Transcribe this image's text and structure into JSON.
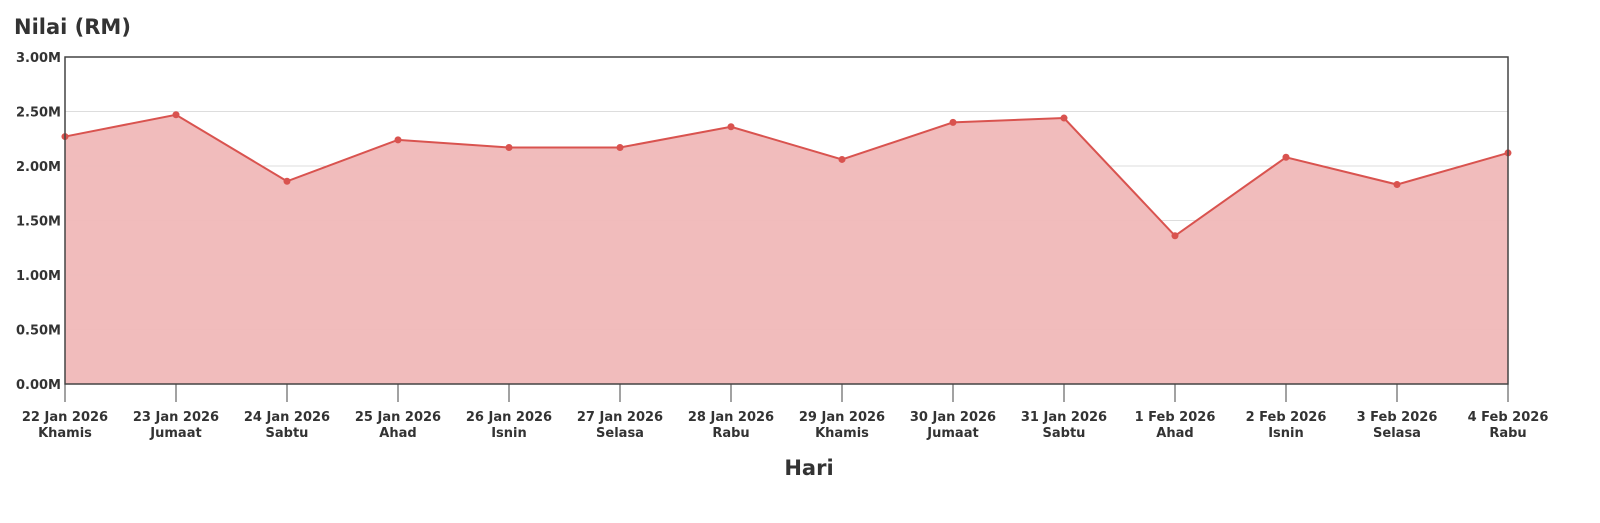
{
  "chart_data": {
    "type": "area",
    "title": "Nilai (RM)",
    "x_label": "Hari",
    "categories": [
      "22 Jan 2026",
      "23 Jan 2026",
      "24 Jan 2026",
      "25 Jan 2026",
      "26 Jan 2026",
      "27 Jan 2026",
      "28 Jan 2026",
      "29 Jan 2026",
      "30 Jan 2026",
      "31 Jan 2026",
      "1 Feb 2026",
      "2 Feb 2026",
      "3 Feb 2026",
      "4 Feb 2026"
    ],
    "weekdays": [
      "Khamis",
      "Jumaat",
      "Sabtu",
      "Ahad",
      "Isnin",
      "Selasa",
      "Rabu",
      "Khamis",
      "Jumaat",
      "Sabtu",
      "Ahad",
      "Isnin",
      "Selasa",
      "Rabu"
    ],
    "values": [
      2270000,
      2470000,
      1860000,
      2240000,
      2170000,
      2170000,
      2360000,
      2060000,
      2400000,
      2440000,
      1360000,
      2080000,
      1830000,
      2120000
    ],
    "color": "#d9534f",
    "fill_color": "#f0b8b8",
    "ylim": [
      0,
      3000000
    ],
    "yticks": [
      {
        "value": 0,
        "label": "0.00M"
      },
      {
        "value": 500000,
        "label": "0.50M"
      },
      {
        "value": 1000000,
        "label": "1.00M"
      },
      {
        "value": 1500000,
        "label": "1.50M"
      },
      {
        "value": 2000000,
        "label": "2.00M"
      },
      {
        "value": 2500000,
        "label": "2.50M"
      },
      {
        "value": 3000000,
        "label": "3.00M"
      }
    ],
    "grid": true
  }
}
